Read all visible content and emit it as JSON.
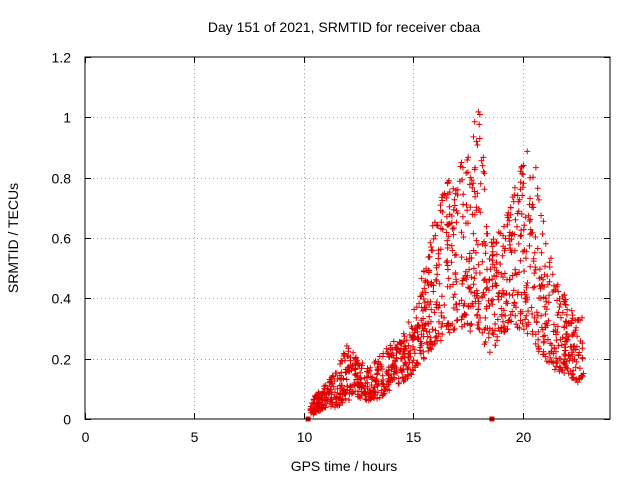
{
  "chart_data": {
    "type": "scatter",
    "title": "Day 151 of 2021, SRMTID for receiver cbaa",
    "xlabel": "GPS time / hours",
    "ylabel": "SRMTID / TECUs",
    "xlim": [
      0,
      24
    ],
    "ylim": [
      0,
      1.2
    ],
    "xticks": [
      0,
      5,
      10,
      15,
      20
    ],
    "yticks": [
      0,
      0.2,
      0.4,
      0.6,
      0.8,
      1,
      1.2
    ],
    "xtick_labels": [
      "0",
      "5",
      "10",
      "15",
      "20"
    ],
    "ytick_labels": [
      "0",
      "0.2",
      "0.4",
      "0.6",
      "0.8",
      "1",
      "1.2"
    ],
    "grid": true,
    "marker": "plus",
    "series_color": "#e00000",
    "square_markers": [
      {
        "x": 10.2,
        "y": 0.0
      },
      {
        "x": 18.6,
        "y": 0.0
      }
    ],
    "envelope": {
      "x": [
        10.3,
        10.8,
        11.5,
        12.0,
        12.5,
        13.0,
        13.5,
        14.0,
        14.5,
        15.0,
        15.5,
        16.0,
        16.5,
        17.0,
        17.5,
        18.0,
        18.5,
        19.0,
        19.5,
        20.0,
        20.5,
        21.0,
        21.5,
        22.0,
        22.5,
        22.8
      ],
      "low": [
        0.01,
        0.03,
        0.04,
        0.06,
        0.07,
        0.06,
        0.07,
        0.1,
        0.12,
        0.15,
        0.2,
        0.24,
        0.27,
        0.3,
        0.3,
        0.26,
        0.22,
        0.26,
        0.3,
        0.3,
        0.24,
        0.2,
        0.16,
        0.15,
        0.12,
        0.12
      ],
      "high": [
        0.06,
        0.1,
        0.16,
        0.25,
        0.2,
        0.17,
        0.22,
        0.25,
        0.28,
        0.35,
        0.5,
        0.7,
        0.78,
        0.82,
        0.9,
        1.05,
        0.62,
        0.62,
        0.72,
        0.88,
        0.9,
        0.65,
        0.48,
        0.4,
        0.34,
        0.36
      ]
    },
    "n_points": 1300
  }
}
